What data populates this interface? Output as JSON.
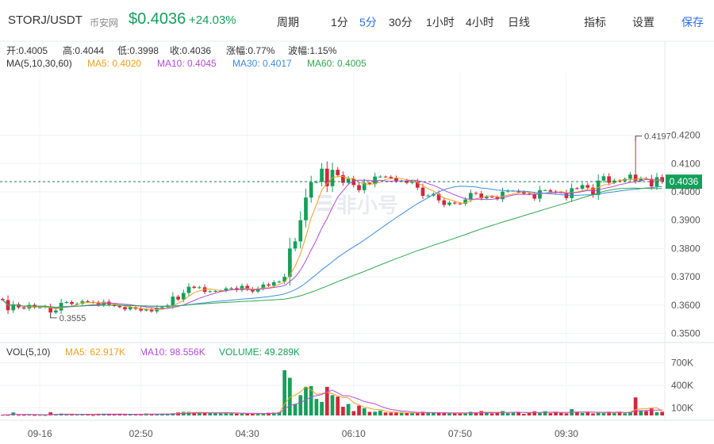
{
  "header": {
    "pair": "STORJ/USDT",
    "exchange": "币安网",
    "price": "$0.4036",
    "change": "+24.03%",
    "period_label": "周期",
    "timeframes": [
      "1分",
      "5分",
      "30分",
      "1小时",
      "4小时",
      "日线"
    ],
    "active_timeframe": "5分",
    "indicators_label": "指标",
    "settings_label": "设置",
    "save_label": "保存"
  },
  "ohlc": {
    "open": "开:0.4005",
    "high": "高:0.4044",
    "low": "低:0.3998",
    "close": "收:0.4036",
    "change": "涨幅:0.77%",
    "amplitude": "波幅:1.15%"
  },
  "ma_legend": {
    "title": "MA(5,10,30,60)",
    "ma5": "MA5: 0.4020",
    "ma10": "MA10: 0.4045",
    "ma30": "MA30: 0.4017",
    "ma60": "MA60: 0.4005"
  },
  "vol_legend": {
    "title": "VOL(5,10)",
    "ma5": "MA5: 62.917K",
    "ma10": "MA10: 98.556K",
    "volume": "VOLUME: 49.289K"
  },
  "watermark": "非小号",
  "colors": {
    "up": "#13a05a",
    "down": "#d2283a",
    "ma5": "#f0a020",
    "ma10": "#b44ad8",
    "ma30": "#3b8de0",
    "ma60": "#2eaa4e",
    "accent": "#2b6ee9"
  },
  "chart_data": {
    "type": "candlestick",
    "price_ticks": [
      "0.4200",
      "0.4100",
      "0.4000",
      "0.3900",
      "0.3800",
      "0.3700",
      "0.3600",
      "0.3500"
    ],
    "price_ylim": [
      0.3468,
      0.442
    ],
    "volume_ticks": [
      "700K",
      "400K",
      "100K"
    ],
    "volume_ylim": [
      0,
      800000
    ],
    "time_labels": [
      "09-16",
      "02:50",
      "04:30",
      "06:10",
      "07:50",
      "09:30"
    ],
    "time_label_index": [
      7,
      26,
      46,
      66,
      86,
      106
    ],
    "current_price_label": "0.4036",
    "max_annotation": {
      "label": "0.4197",
      "index": 119,
      "value": 0.4197
    },
    "min_annotation": {
      "label": "0.3555",
      "index": 9,
      "value": 0.3555
    },
    "closes": [
      0.3618,
      0.3582,
      0.3603,
      0.3592,
      0.3588,
      0.3601,
      0.3592,
      0.3592,
      0.3595,
      0.3574,
      0.3581,
      0.3608,
      0.3611,
      0.3604,
      0.3605,
      0.3614,
      0.3611,
      0.361,
      0.36,
      0.3612,
      0.3602,
      0.3597,
      0.3593,
      0.3585,
      0.3593,
      0.3587,
      0.3581,
      0.3585,
      0.3578,
      0.359,
      0.3593,
      0.3599,
      0.363,
      0.362,
      0.3643,
      0.3665,
      0.3661,
      0.3663,
      0.3647,
      0.3649,
      0.365,
      0.365,
      0.3659,
      0.366,
      0.3653,
      0.3668,
      0.3656,
      0.3648,
      0.3659,
      0.3673,
      0.3669,
      0.3681,
      0.3683,
      0.37,
      0.38,
      0.3825,
      0.39,
      0.398,
      0.4034,
      0.4035,
      0.4082,
      0.402,
      0.4078,
      0.4059,
      0.4032,
      0.4046,
      0.4024,
      0.4006,
      0.4032,
      0.4027,
      0.4054,
      0.4054,
      0.4053,
      0.4049,
      0.4039,
      0.404,
      0.4032,
      0.4036,
      0.4015,
      0.3986,
      0.3987,
      0.3993,
      0.397,
      0.3954,
      0.3962,
      0.3959,
      0.3958,
      0.3973,
      0.3996,
      0.3994,
      0.3977,
      0.3983,
      0.3982,
      0.3974,
      0.4001,
      0.4004,
      0.4004,
      0.3999,
      0.3994,
      0.3991,
      0.3976,
      0.4006,
      0.4006,
      0.4001,
      0.3998,
      0.3997,
      0.3978,
      0.4013,
      0.4011,
      0.4024,
      0.4015,
      0.3989,
      0.404,
      0.4055,
      0.4032,
      0.404,
      0.4038,
      0.4046,
      0.4061,
      0.4039,
      0.4048,
      0.4046,
      0.4019,
      0.4052,
      0.4036
    ],
    "volumes": [
      8000,
      7000,
      40000,
      6000,
      7000,
      9000,
      6000,
      7000,
      5000,
      42000,
      9000,
      25000,
      13000,
      12000,
      13000,
      16000,
      14000,
      5000,
      22000,
      24000,
      22000,
      18000,
      17000,
      9000,
      15000,
      12000,
      13000,
      26000,
      19000,
      18000,
      24000,
      20000,
      30000,
      40000,
      48000,
      47000,
      39000,
      35000,
      33000,
      31000,
      31000,
      29000,
      31000,
      30000,
      24000,
      24000,
      24000,
      24000,
      24000,
      26000,
      36000,
      38000,
      45000,
      600000,
      500000,
      153000,
      270000,
      380000,
      390000,
      220000,
      180000,
      380000,
      270000,
      250000,
      115000,
      153000,
      58000,
      131000,
      95000,
      48000,
      50000,
      63000,
      40000,
      38000,
      37000,
      34000,
      33000,
      33000,
      32000,
      50000,
      40000,
      33000,
      32000,
      31000,
      29000,
      30000,
      28000,
      29000,
      48000,
      42000,
      59000,
      38000,
      27000,
      40000,
      60000,
      30000,
      45000,
      40000,
      21000,
      40000,
      55000,
      33000,
      56000,
      30000,
      51000,
      34000,
      28000,
      85000,
      41000,
      34000,
      46000,
      27000,
      47000,
      30000,
      50000,
      30000,
      50000,
      29000,
      48000,
      240000,
      68000,
      58000,
      93000,
      44000,
      49289
    ]
  }
}
